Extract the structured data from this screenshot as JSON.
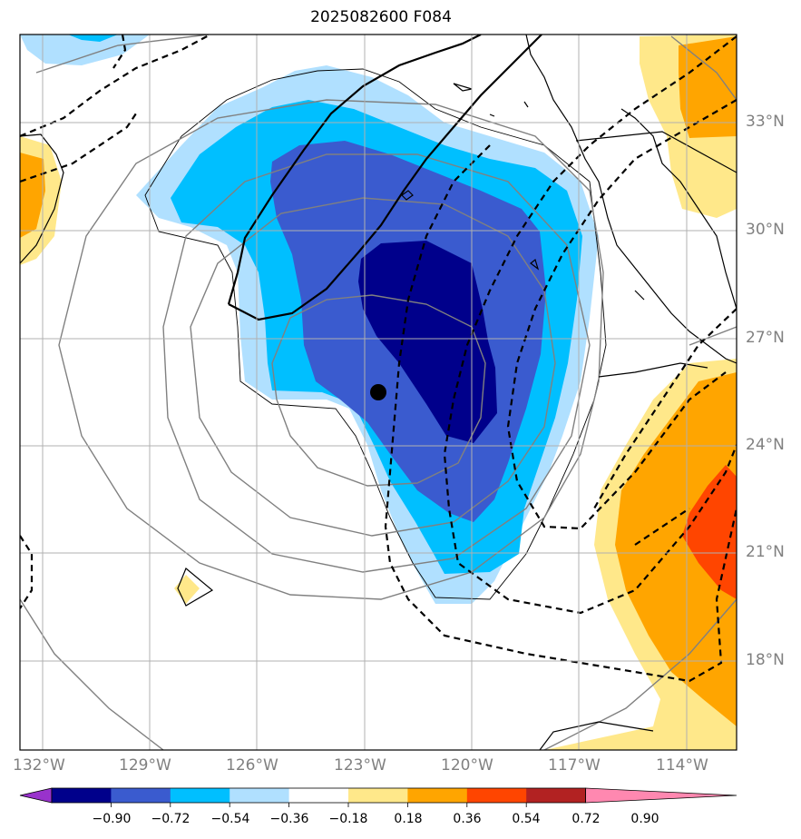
{
  "title": "2025082600 F084",
  "map": {
    "lat_labels": [
      "33°N",
      "30°N",
      "27°N",
      "24°N",
      "21°N",
      "18°N"
    ],
    "lon_labels": [
      "132°W",
      "129°W",
      "126°W",
      "123°W",
      "120°W",
      "117°W",
      "114°W"
    ],
    "center_marker": {
      "lon": -122.7,
      "lat": 25.5
    }
  },
  "colorbar": {
    "ticks": [
      "−0.90",
      "−0.72",
      "−0.54",
      "−0.36",
      "−0.18",
      "0.18",
      "0.36",
      "0.54",
      "0.72",
      "0.90"
    ],
    "colors": [
      "#9932cc",
      "#00008b",
      "#3a5bcf",
      "#00bfff",
      "#b0e0ff",
      "#ffffff",
      "#ffe88a",
      "#ffa500",
      "#ff4500",
      "#b22222",
      "#ff88b0"
    ]
  }
}
